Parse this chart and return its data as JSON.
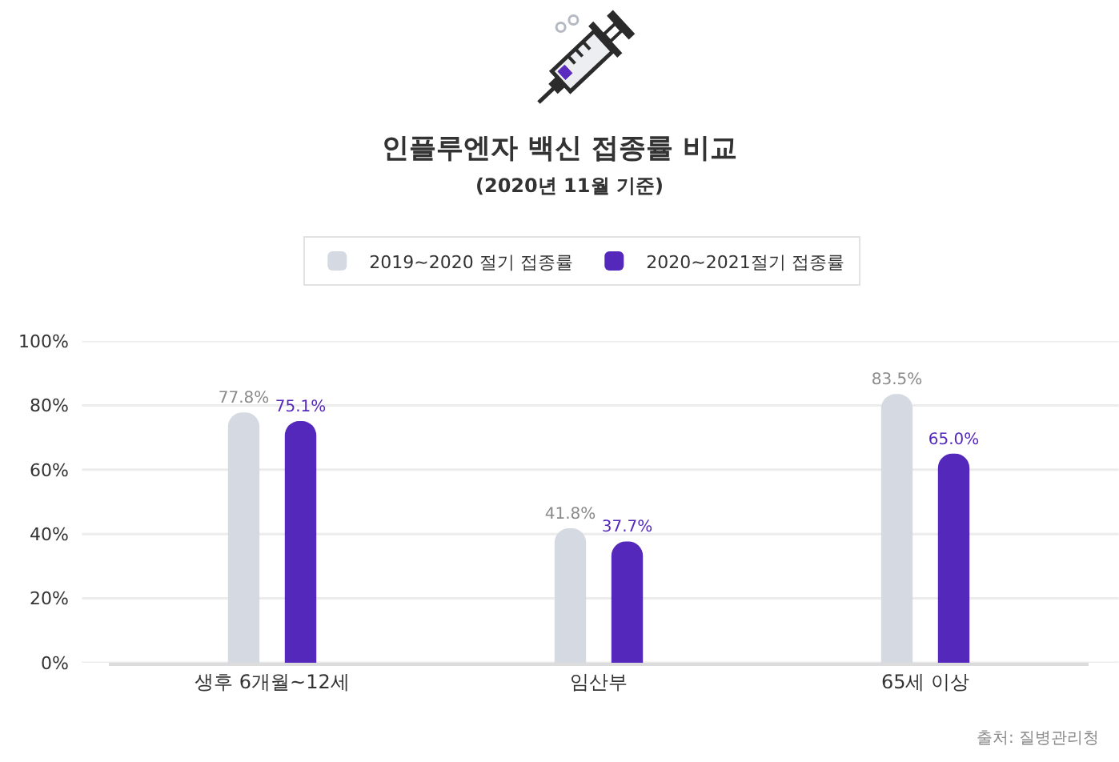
{
  "chart_data": {
    "type": "bar",
    "title": "인플루엔자 백신 접종률 비교",
    "subtitle": "(2020년 11월 기준)",
    "categories": [
      "생후 6개월~12세",
      "임산부",
      "65세 이상"
    ],
    "series": [
      {
        "name": "2019~2020 절기 접종률",
        "color": "#d5dae2",
        "values": [
          77.8,
          41.8,
          83.5
        ],
        "value_labels": [
          "77.8%",
          "41.8%",
          "83.5%"
        ]
      },
      {
        "name": "2020~2021절기 접종률",
        "color": "#5428bb",
        "values": [
          75.1,
          37.7,
          65.0
        ],
        "value_labels": [
          "75.1%",
          "37.7%",
          "65.0%"
        ]
      }
    ],
    "ylim": [
      0,
      100
    ],
    "yticks": [
      {
        "value": 0,
        "label": "0%"
      },
      {
        "value": 20,
        "label": "20%"
      },
      {
        "value": 40,
        "label": "40%"
      },
      {
        "value": 60,
        "label": "60%"
      },
      {
        "value": 80,
        "label": "80%"
      },
      {
        "value": 100,
        "label": "100%"
      }
    ],
    "grid": "y",
    "legend": "top",
    "annotations": [
      "출처: 질병관리청"
    ]
  }
}
